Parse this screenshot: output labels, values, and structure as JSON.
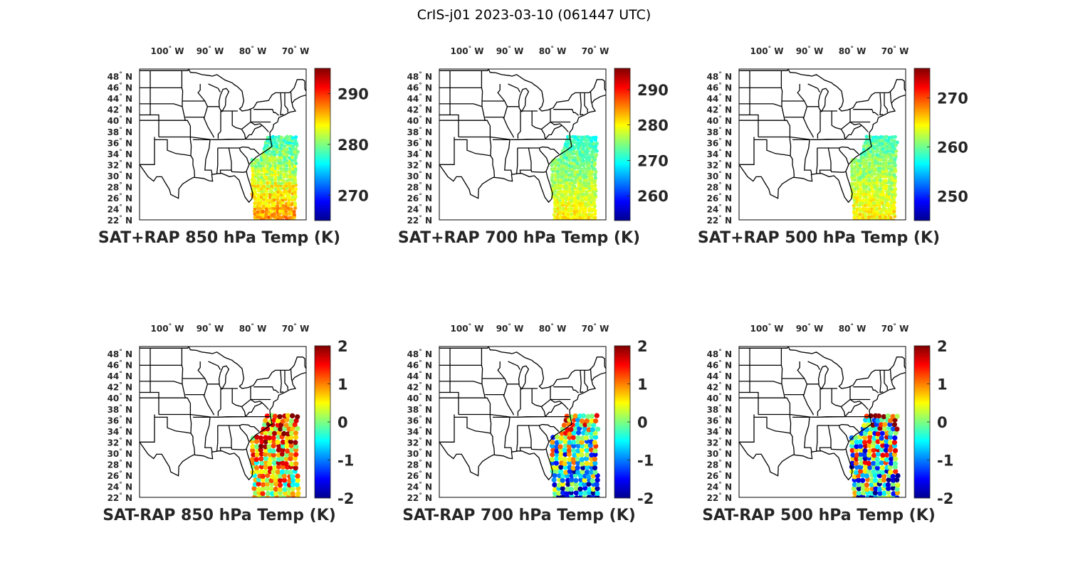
{
  "figure_title": "CrIS-j01 2023-03-10 (061447 UTC)",
  "colormap": [
    "#00008f",
    "#0000ff",
    "#007fff",
    "#00ffff",
    "#7fff7f",
    "#ffff00",
    "#ff7f00",
    "#ff0000",
    "#7f0000"
  ],
  "chart_data": [
    {
      "type": "heatmap",
      "title": "SAT+RAP 850 hPa Temp (K)",
      "lon_ticks": [
        "100° W",
        "90° W",
        "80° W",
        "70° W"
      ],
      "lon_tick_values": [
        -100,
        -90,
        -80,
        -70
      ],
      "lat_ticks": [
        "48° N",
        "46° N",
        "44° N",
        "42° N",
        "40° N",
        "38° N",
        "36° N",
        "34° N",
        "32° N",
        "30° N",
        "28° N",
        "26° N",
        "24° N",
        "22° N"
      ],
      "lat_tick_values": [
        48,
        46,
        44,
        42,
        40,
        38,
        36,
        34,
        32,
        30,
        28,
        26,
        24,
        22
      ],
      "colorbar": {
        "ticks": [
          290,
          280,
          270
        ],
        "range": [
          265,
          295
        ]
      },
      "swath": {
        "lon_range": [
          -80,
          -69.5
        ],
        "lat_range": [
          22,
          37
        ],
        "value_south": 287,
        "value_north": 278,
        "scatter": 2.5
      }
    },
    {
      "type": "heatmap",
      "title": "SAT+RAP 700 hPa Temp (K)",
      "lon_ticks": [
        "100° W",
        "90° W",
        "80° W",
        "70° W"
      ],
      "lon_tick_values": [
        -100,
        -90,
        -80,
        -70
      ],
      "lat_ticks": [
        "48° N",
        "46° N",
        "44° N",
        "42° N",
        "40° N",
        "38° N",
        "36° N",
        "34° N",
        "32° N",
        "30° N",
        "28° N",
        "26° N",
        "24° N",
        "22° N"
      ],
      "lat_tick_values": [
        48,
        46,
        44,
        42,
        40,
        38,
        36,
        34,
        32,
        30,
        28,
        26,
        24,
        22
      ],
      "colorbar": {
        "ticks": [
          290,
          280,
          270,
          260
        ],
        "range": [
          253,
          296
        ]
      },
      "swath": {
        "lon_range": [
          -80,
          -69.5
        ],
        "lat_range": [
          22,
          37
        ],
        "value_south": 281,
        "value_north": 271,
        "scatter": 2.5
      }
    },
    {
      "type": "heatmap",
      "title": "SAT+RAP 500 hPa Temp (K)",
      "lon_ticks": [
        "100° W",
        "90° W",
        "80° W",
        "70° W"
      ],
      "lon_tick_values": [
        -100,
        -90,
        -80,
        -70
      ],
      "lat_ticks": [
        "48° N",
        "46° N",
        "44° N",
        "42° N",
        "40° N",
        "38° N",
        "36° N",
        "34° N",
        "32° N",
        "30° N",
        "28° N",
        "26° N",
        "24° N",
        "22° N"
      ],
      "lat_tick_values": [
        48,
        46,
        44,
        42,
        40,
        38,
        36,
        34,
        32,
        30,
        28,
        26,
        24,
        22
      ],
      "colorbar": {
        "ticks": [
          270,
          260,
          250
        ],
        "range": [
          245,
          276
        ]
      },
      "swath": {
        "lon_range": [
          -80,
          -69.5
        ],
        "lat_range": [
          22,
          37
        ],
        "value_south": 265,
        "value_north": 259,
        "scatter": 2.0
      }
    },
    {
      "type": "heatmap",
      "title": "SAT-RAP 850 hPa Temp (K)",
      "lon_ticks": [
        "100° W",
        "90° W",
        "80° W",
        "70° W"
      ],
      "lon_tick_values": [
        -100,
        -90,
        -80,
        -70
      ],
      "lat_ticks": [
        "48° N",
        "46° N",
        "44° N",
        "42° N",
        "40° N",
        "38° N",
        "36° N",
        "34° N",
        "32° N",
        "30° N",
        "28° N",
        "26° N",
        "24° N",
        "22° N"
      ],
      "lat_tick_values": [
        48,
        46,
        44,
        42,
        40,
        38,
        36,
        34,
        32,
        30,
        28,
        26,
        24,
        22
      ],
      "colorbar": {
        "ticks": [
          2,
          1,
          0,
          -1,
          -2
        ],
        "range": [
          -2,
          2
        ]
      },
      "swath": {
        "lon_range": [
          -80,
          -69.5
        ],
        "lat_range": [
          22,
          37
        ],
        "value_south": 0.3,
        "value_north": 1.2,
        "scatter": 1.2
      }
    },
    {
      "type": "heatmap",
      "title": "SAT-RAP 700 hPa Temp (K)",
      "lon_ticks": [
        "100° W",
        "90° W",
        "80° W",
        "70° W"
      ],
      "lon_tick_values": [
        -100,
        -90,
        -80,
        -70
      ],
      "lat_ticks": [
        "48° N",
        "46° N",
        "44° N",
        "42° N",
        "40° N",
        "38° N",
        "36° N",
        "34° N",
        "32° N",
        "30° N",
        "28° N",
        "26° N",
        "24° N",
        "22° N"
      ],
      "lat_tick_values": [
        48,
        46,
        44,
        42,
        40,
        38,
        36,
        34,
        32,
        30,
        28,
        26,
        24,
        22
      ],
      "colorbar": {
        "ticks": [
          2,
          1,
          0,
          -1,
          -2
        ],
        "range": [
          -2,
          2
        ]
      },
      "swath": {
        "lon_range": [
          -80,
          -69.5
        ],
        "lat_range": [
          22,
          37
        ],
        "value_south": -1.0,
        "value_north": 0.5,
        "scatter": 1.5
      }
    },
    {
      "type": "heatmap",
      "title": "SAT-RAP 500 hPa Temp (K)",
      "lon_ticks": [
        "100° W",
        "90° W",
        "80° W",
        "70° W"
      ],
      "lon_tick_values": [
        -100,
        -90,
        -80,
        -70
      ],
      "lat_ticks": [
        "48° N",
        "46° N",
        "44° N",
        "42° N",
        "40° N",
        "38° N",
        "36° N",
        "34° N",
        "32° N",
        "30° N",
        "28° N",
        "26° N",
        "24° N",
        "22° N"
      ],
      "lat_tick_values": [
        48,
        46,
        44,
        42,
        40,
        38,
        36,
        34,
        32,
        30,
        28,
        26,
        24,
        22
      ],
      "colorbar": {
        "ticks": [
          2,
          1,
          0,
          -1,
          -2
        ],
        "range": [
          -2,
          2
        ]
      },
      "swath": {
        "lon_range": [
          -80,
          -69.5
        ],
        "lat_range": [
          22,
          37
        ],
        "value_south": -0.8,
        "value_north": 0.6,
        "scatter": 1.8
      }
    }
  ]
}
